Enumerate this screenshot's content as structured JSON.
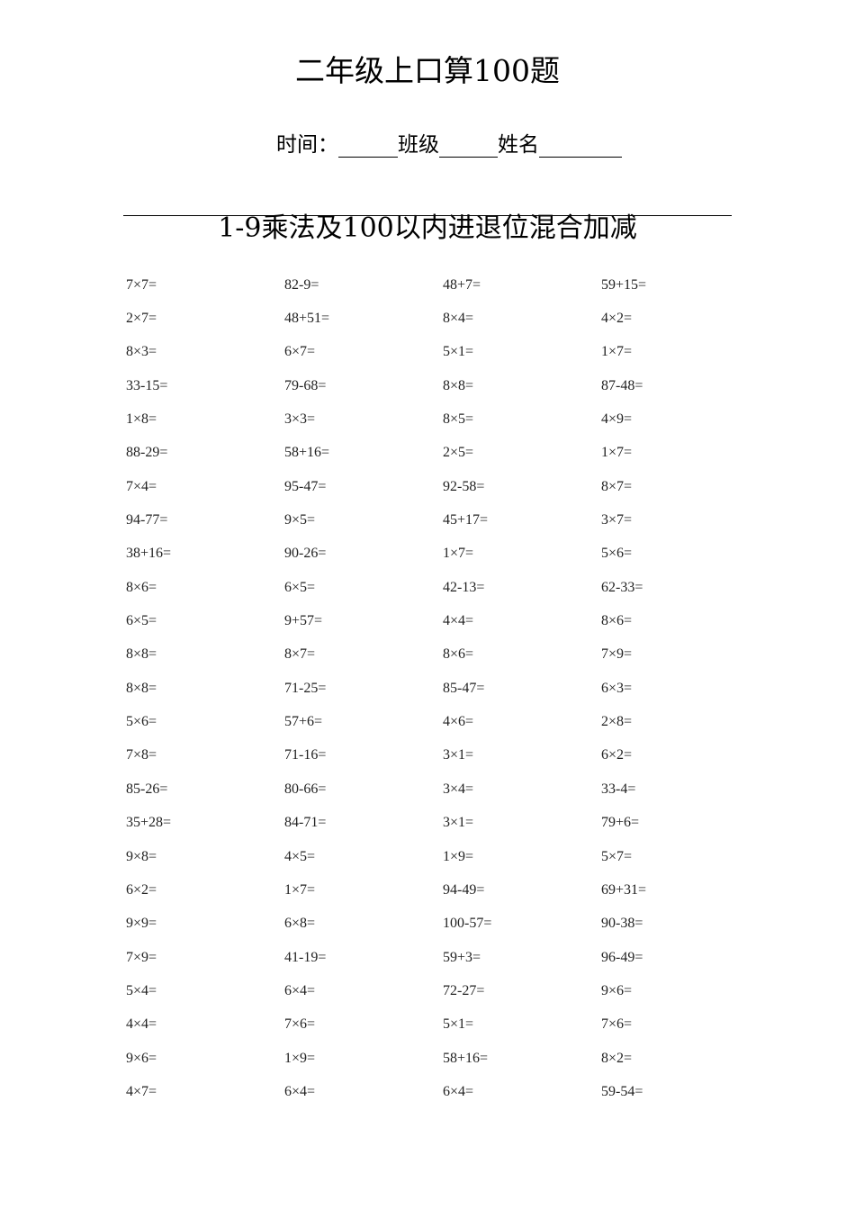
{
  "title": "二年级上口算100题",
  "info": {
    "time_label": "时间：",
    "class_label": "班级",
    "name_label": "姓名"
  },
  "section_heading": "1-9乘法及100以内进退位混合加减",
  "problems": [
    [
      "7×7=",
      "82-9=",
      "48+7=",
      "59+15="
    ],
    [
      "2×7=",
      "48+51=",
      "8×4=",
      "4×2="
    ],
    [
      "8×3=",
      "6×7=",
      "5×1=",
      "1×7="
    ],
    [
      "33-15=",
      "79-68=",
      "8×8=",
      "87-48="
    ],
    [
      "1×8=",
      "3×3=",
      "8×5=",
      "4×9="
    ],
    [
      "88-29=",
      "58+16=",
      "2×5=",
      "1×7="
    ],
    [
      "7×4=",
      "95-47=",
      "92-58=",
      "8×7="
    ],
    [
      "94-77=",
      "9×5=",
      "45+17=",
      "3×7="
    ],
    [
      "38+16=",
      "90-26=",
      "1×7=",
      "5×6="
    ],
    [
      "8×6=",
      "6×5=",
      "42-13=",
      "62-33="
    ],
    [
      "6×5=",
      "9+57=",
      "4×4=",
      "8×6="
    ],
    [
      "8×8=",
      "8×7=",
      "8×6=",
      "7×9="
    ],
    [
      "8×8=",
      "71-25=",
      "85-47=",
      "6×3="
    ],
    [
      "5×6=",
      "57+6=",
      "4×6=",
      "2×8="
    ],
    [
      "7×8=",
      "71-16=",
      "3×1=",
      "6×2="
    ],
    [
      "85-26=",
      "80-66=",
      "3×4=",
      "33-4="
    ],
    [
      "35+28=",
      "84-71=",
      "3×1=",
      "79+6="
    ],
    [
      "9×8=",
      "4×5=",
      "1×9=",
      "5×7="
    ],
    [
      "6×2=",
      "1×7=",
      "94-49=",
      "69+31="
    ],
    [
      "9×9=",
      "6×8=",
      "100-57=",
      "90-38="
    ],
    [
      "7×9=",
      "41-19=",
      "59+3=",
      "96-49="
    ],
    [
      "5×4=",
      "6×4=",
      "72-27=",
      "9×6="
    ],
    [
      "4×4=",
      "7×6=",
      "5×1=",
      "7×6="
    ],
    [
      "9×6=",
      "1×9=",
      "58+16=",
      "8×2="
    ],
    [
      "4×7=",
      "6×4=",
      "6×4=",
      "59-54="
    ]
  ]
}
